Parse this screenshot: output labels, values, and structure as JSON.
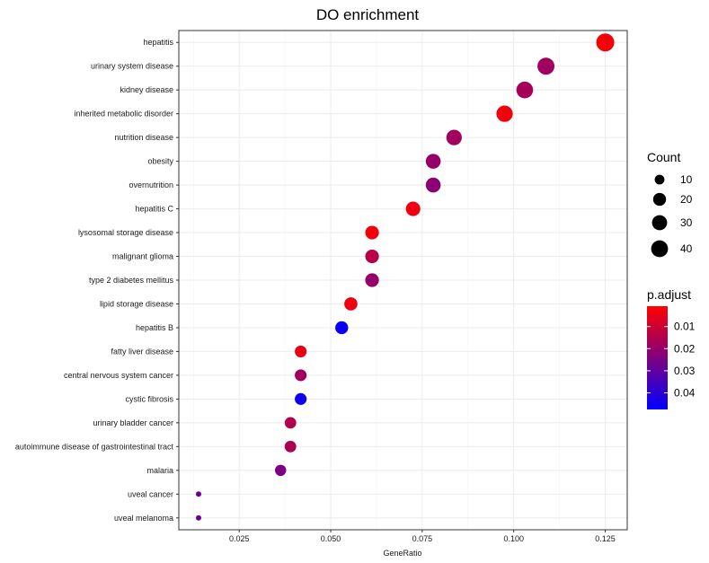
{
  "chart_data": {
    "type": "scatter",
    "title": "DO enrichment",
    "xlabel": "GeneRatio",
    "ylabel": "",
    "xlim": [
      0.0085,
      0.131
    ],
    "xticks": [
      0.025,
      0.05,
      0.075,
      0.1,
      0.125
    ],
    "xtick_labels": [
      "0.025",
      "0.050",
      "0.075",
      "0.100",
      "0.125"
    ],
    "grid": true,
    "legend_placement": "right",
    "categories": [
      "hepatitis",
      "urinary system disease",
      "kidney disease",
      "inherited metabolic disorder",
      "nutrition disease",
      "obesity",
      "overnutrition",
      "hepatitis C",
      "lysosomal storage disease",
      "malignant glioma",
      "type 2 diabetes mellitus",
      "lipid storage disease",
      "hepatitis B",
      "fatty liver disease",
      "central nervous system cancer",
      "cystic fibrosis",
      "urinary bladder cancer",
      "autoimmune disease of gastrointestinal tract",
      "malaria",
      "uveal cancer",
      "uveal melanoma"
    ],
    "points": [
      {
        "term": "hepatitis",
        "gene_ratio": 0.125,
        "count": 47,
        "p_adjust": 0.002
      },
      {
        "term": "urinary system disease",
        "gene_ratio": 0.1088,
        "count": 41,
        "p_adjust": 0.018
      },
      {
        "term": "kidney disease",
        "gene_ratio": 0.103,
        "count": 39,
        "p_adjust": 0.017
      },
      {
        "term": "inherited metabolic disorder",
        "gene_ratio": 0.0975,
        "count": 37,
        "p_adjust": 0.003
      },
      {
        "term": "nutrition disease",
        "gene_ratio": 0.0837,
        "count": 32,
        "p_adjust": 0.018
      },
      {
        "term": "obesity",
        "gene_ratio": 0.078,
        "count": 29,
        "p_adjust": 0.02
      },
      {
        "term": "overnutrition",
        "gene_ratio": 0.078,
        "count": 29,
        "p_adjust": 0.022
      },
      {
        "term": "hepatitis C",
        "gene_ratio": 0.0725,
        "count": 27,
        "p_adjust": 0.004
      },
      {
        "term": "lysosomal storage disease",
        "gene_ratio": 0.0613,
        "count": 23,
        "p_adjust": 0.003
      },
      {
        "term": "malignant glioma",
        "gene_ratio": 0.0613,
        "count": 23,
        "p_adjust": 0.014
      },
      {
        "term": "type 2 diabetes mellitus",
        "gene_ratio": 0.0613,
        "count": 23,
        "p_adjust": 0.02
      },
      {
        "term": "lipid storage disease",
        "gene_ratio": 0.0555,
        "count": 21,
        "p_adjust": 0.004
      },
      {
        "term": "hepatitis B",
        "gene_ratio": 0.053,
        "count": 20,
        "p_adjust": 0.046
      },
      {
        "term": "fatty liver disease",
        "gene_ratio": 0.0418,
        "count": 16,
        "p_adjust": 0.005
      },
      {
        "term": "central nervous system cancer",
        "gene_ratio": 0.0418,
        "count": 16,
        "p_adjust": 0.018
      },
      {
        "term": "cystic fibrosis",
        "gene_ratio": 0.0418,
        "count": 16,
        "p_adjust": 0.045
      },
      {
        "term": "urinary bladder cancer",
        "gene_ratio": 0.039,
        "count": 15,
        "p_adjust": 0.015
      },
      {
        "term": "autoimmune disease of gastrointestinal tract",
        "gene_ratio": 0.039,
        "count": 15,
        "p_adjust": 0.016
      },
      {
        "term": "malaria",
        "gene_ratio": 0.0363,
        "count": 14,
        "p_adjust": 0.025
      },
      {
        "term": "uveal cancer",
        "gene_ratio": 0.0139,
        "count": 5,
        "p_adjust": 0.028
      },
      {
        "term": "uveal melanoma",
        "gene_ratio": 0.0139,
        "count": 5,
        "p_adjust": 0.028
      }
    ],
    "size_legend": {
      "title": "Count",
      "values": [
        10,
        20,
        30,
        40
      ],
      "labels": [
        "10",
        "20",
        "30",
        "40"
      ]
    },
    "color_legend": {
      "title": "p.adjust",
      "range": [
        0.0008,
        0.0475
      ],
      "ticks": [
        0.01,
        0.02,
        0.03,
        0.04
      ],
      "tick_labels": [
        "0.01",
        "0.02",
        "0.03",
        "0.04"
      ],
      "low_color": "#ff0000",
      "high_color": "#0000ff"
    },
    "colors": {
      "panel_border": "#333333",
      "grid": "#ebebeb",
      "axis_ticks": "#333333"
    }
  }
}
